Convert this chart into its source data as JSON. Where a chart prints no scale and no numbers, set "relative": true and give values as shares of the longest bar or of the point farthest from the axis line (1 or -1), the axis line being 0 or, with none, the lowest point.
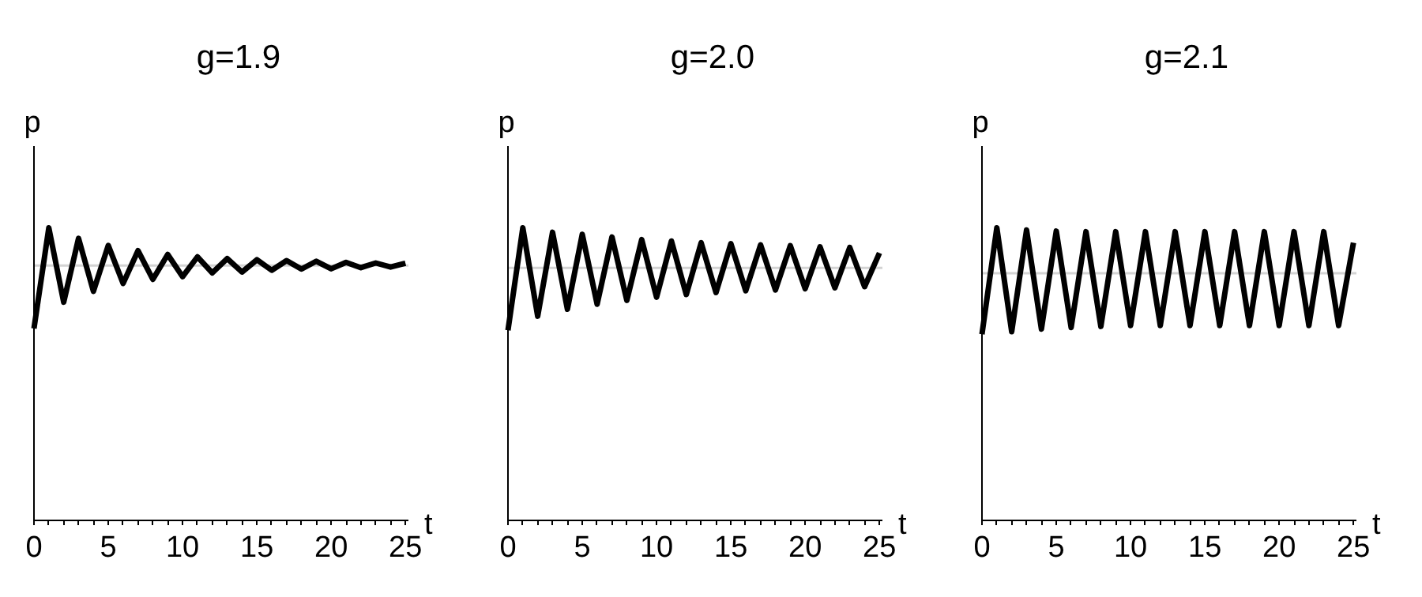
{
  "chart_data": [
    {
      "type": "line",
      "title": "g=1.9",
      "xlabel": "t",
      "ylabel": "p",
      "relative": true,
      "x": [
        0,
        1,
        2,
        3,
        4,
        5,
        6,
        7,
        8,
        9,
        10,
        11,
        12,
        13,
        14,
        15,
        16,
        17,
        18,
        19,
        20,
        21,
        22,
        23,
        24,
        25
      ],
      "xlim": [
        0,
        25.2
      ],
      "xticks": [
        0,
        {
          "value": 1,
          "label": null
        },
        {
          "value": 2,
          "label": null
        },
        {
          "value": 3,
          "label": null
        },
        {
          "value": 4,
          "label": null
        },
        5,
        {
          "value": 6,
          "label": null
        },
        {
          "value": 7,
          "label": null
        },
        {
          "value": 8,
          "label": null
        },
        {
          "value": 9,
          "label": null
        },
        10,
        {
          "value": 11,
          "label": null
        },
        {
          "value": 12,
          "label": null
        },
        {
          "value": 13,
          "label": null
        },
        {
          "value": 14,
          "label": null
        },
        15,
        {
          "value": 16,
          "label": null
        },
        {
          "value": 17,
          "label": null
        },
        {
          "value": 18,
          "label": null
        },
        {
          "value": 19,
          "label": null
        },
        20,
        {
          "value": 21,
          "label": null
        },
        {
          "value": 22,
          "label": null
        },
        {
          "value": 23,
          "label": null
        },
        {
          "value": 24,
          "label": null
        },
        25
      ],
      "series": [
        {
          "color": "#000000",
          "values": [
            0.656,
            1,
            0.746,
            0.964,
            0.783,
            0.94,
            0.81,
            0.922,
            0.824,
            0.909,
            0.833,
            0.901,
            0.846,
            0.895,
            0.849,
            0.891,
            0.855,
            0.888,
            0.859,
            0.886,
            0.86,
            0.882,
            0.864,
            0.88,
            0.866,
            0.879
          ]
        }
      ],
      "ref_lines": [
        {
          "axis": "y",
          "value": 0.871,
          "color": "#d3d3d3"
        }
      ],
      "grid": false,
      "marker": "none",
      "line_style": "solid"
    },
    {
      "type": "line",
      "title": "g=2.0",
      "xlabel": "t",
      "ylabel": "p",
      "relative": true,
      "x": [
        0,
        1,
        2,
        3,
        4,
        5,
        6,
        7,
        8,
        9,
        10,
        11,
        12,
        13,
        14,
        15,
        16,
        17,
        18,
        19,
        20,
        21,
        22,
        23,
        24,
        25
      ],
      "xlim": [
        0,
        25.2
      ],
      "xticks": [
        0,
        {
          "value": 1,
          "label": null
        },
        {
          "value": 2,
          "label": null
        },
        {
          "value": 3,
          "label": null
        },
        {
          "value": 4,
          "label": null
        },
        5,
        {
          "value": 6,
          "label": null
        },
        {
          "value": 7,
          "label": null
        },
        {
          "value": 8,
          "label": null
        },
        {
          "value": 9,
          "label": null
        },
        10,
        {
          "value": 11,
          "label": null
        },
        {
          "value": 12,
          "label": null
        },
        {
          "value": 13,
          "label": null
        },
        {
          "value": 14,
          "label": null
        },
        15,
        {
          "value": 16,
          "label": null
        },
        {
          "value": 17,
          "label": null
        },
        {
          "value": 18,
          "label": null
        },
        {
          "value": 19,
          "label": null
        },
        20,
        {
          "value": 21,
          "label": null
        },
        {
          "value": 22,
          "label": null
        },
        {
          "value": 23,
          "label": null
        },
        {
          "value": 24,
          "label": null
        },
        25
      ],
      "series": [
        {
          "color": "#000000",
          "values": [
            0.65,
            1,
            0.698,
            0.985,
            0.722,
            0.978,
            0.739,
            0.969,
            0.752,
            0.96,
            0.763,
            0.955,
            0.772,
            0.949,
            0.779,
            0.946,
            0.785,
            0.942,
            0.788,
            0.939,
            0.792,
            0.935,
            0.795,
            0.933,
            0.799,
            0.914
          ]
        }
      ],
      "ref_lines": [
        {
          "axis": "y",
          "value": 0.863,
          "color": "#d3d3d3"
        }
      ],
      "grid": false,
      "marker": "none",
      "line_style": "solid"
    },
    {
      "type": "line",
      "title": "g=2.1",
      "xlabel": "t",
      "ylabel": "p",
      "relative": true,
      "x": [
        0,
        1,
        2,
        3,
        4,
        5,
        6,
        7,
        8,
        9,
        10,
        11,
        12,
        13,
        14,
        15,
        16,
        17,
        18,
        19,
        20,
        21,
        22,
        23,
        24,
        25
      ],
      "xlim": [
        0,
        25.2
      ],
      "xticks": [
        0,
        {
          "value": 1,
          "label": null
        },
        {
          "value": 2,
          "label": null
        },
        {
          "value": 3,
          "label": null
        },
        {
          "value": 4,
          "label": null
        },
        5,
        {
          "value": 6,
          "label": null
        },
        {
          "value": 7,
          "label": null
        },
        {
          "value": 8,
          "label": null
        },
        {
          "value": 9,
          "label": null
        },
        10,
        {
          "value": 11,
          "label": null
        },
        {
          "value": 12,
          "label": null
        },
        {
          "value": 13,
          "label": null
        },
        {
          "value": 14,
          "label": null
        },
        15,
        {
          "value": 16,
          "label": null
        },
        {
          "value": 17,
          "label": null
        },
        {
          "value": 18,
          "label": null
        },
        {
          "value": 19,
          "label": null
        },
        20,
        {
          "value": 21,
          "label": null
        },
        {
          "value": 22,
          "label": null
        },
        {
          "value": 23,
          "label": null
        },
        {
          "value": 24,
          "label": null
        },
        25
      ],
      "series": [
        {
          "color": "#000000",
          "values": [
            0.636,
            1,
            0.645,
            0.993,
            0.654,
            0.989,
            0.659,
            0.987,
            0.663,
            0.987,
            0.666,
            0.987,
            0.666,
            0.987,
            0.666,
            0.987,
            0.666,
            0.987,
            0.666,
            0.987,
            0.666,
            0.987,
            0.666,
            0.987,
            0.666,
            0.949
          ]
        }
      ],
      "ref_lines": [
        {
          "axis": "y",
          "value": 0.845,
          "color": "#d3d3d3"
        }
      ],
      "grid": false,
      "marker": "none",
      "line_style": "solid"
    }
  ]
}
